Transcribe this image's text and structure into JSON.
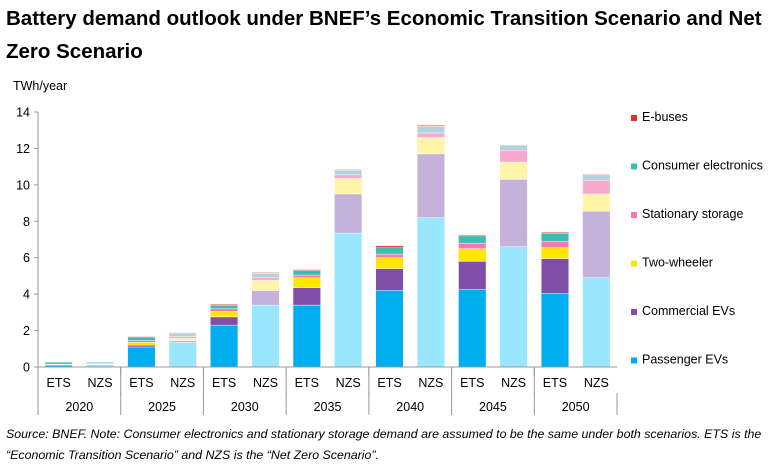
{
  "title": "Battery demand outlook under BNEF’s Economic Transition Scenario and Net Zero Scenario",
  "source": "Source: BNEF. Note: Consumer electronics and stationary storage demand are assumed to be the same under both scenarios. ETS is the “Economic Transition Scenario” and NZS is the “Net Zero Scenario”.",
  "chart_data": {
    "type": "bar",
    "stacked": true,
    "ylabel": "TWh/year",
    "ylim": [
      0,
      14
    ],
    "yticks": [
      0,
      2,
      4,
      6,
      8,
      10,
      12,
      14
    ],
    "grid": false,
    "legend_position": "right",
    "groups": [
      "2020",
      "2025",
      "2030",
      "2035",
      "2040",
      "2045",
      "2050"
    ],
    "categories": [
      "ETS",
      "NZS",
      "ETS",
      "NZS",
      "ETS",
      "NZS",
      "ETS",
      "NZS",
      "ETS",
      "NZS",
      "ETS",
      "NZS",
      "ETS",
      "NZS"
    ],
    "series": [
      {
        "name": "Passenger EVs",
        "colors": [
          "#00AEEF",
          "#99E6FF"
        ],
        "values": [
          0.1,
          0.13,
          1.1,
          1.35,
          2.3,
          3.4,
          3.4,
          7.35,
          4.2,
          8.2,
          4.25,
          6.6,
          4.05,
          4.9
        ]
      },
      {
        "name": "Commercial EVs",
        "colors": [
          "#7F4FA8",
          "#C4B2DB"
        ],
        "values": [
          0.02,
          0.02,
          0.1,
          0.1,
          0.45,
          0.8,
          0.95,
          2.15,
          1.2,
          3.5,
          1.55,
          3.7,
          1.9,
          3.65
        ]
      },
      {
        "name": "Two-wheeler",
        "colors": [
          "#FFE600",
          "#FFF4A8"
        ],
        "values": [
          0.03,
          0.02,
          0.15,
          0.12,
          0.3,
          0.55,
          0.55,
          0.85,
          0.6,
          0.9,
          0.7,
          0.95,
          0.6,
          0.95
        ]
      },
      {
        "name": "Stationary storage",
        "colors": [
          "#F47AB0",
          "#F9A9CE"
        ],
        "values": [
          0.01,
          0.01,
          0.1,
          0.1,
          0.15,
          0.15,
          0.15,
          0.2,
          0.2,
          0.25,
          0.3,
          0.65,
          0.35,
          0.75
        ]
      },
      {
        "name": "Consumer electronics",
        "colors": [
          "#3DBDB3",
          "#B0D3DD"
        ],
        "values": [
          0.1,
          0.1,
          0.2,
          0.2,
          0.2,
          0.25,
          0.25,
          0.25,
          0.35,
          0.35,
          0.4,
          0.25,
          0.45,
          0.3
        ]
      },
      {
        "name": "E-buses",
        "colors": [
          "#E8302A",
          "#F2A29D"
        ],
        "values": [
          0.02,
          0.0,
          0.03,
          0.03,
          0.05,
          0.05,
          0.05,
          0.05,
          0.1,
          0.1,
          0.05,
          0.05,
          0.05,
          0.05
        ]
      }
    ]
  }
}
